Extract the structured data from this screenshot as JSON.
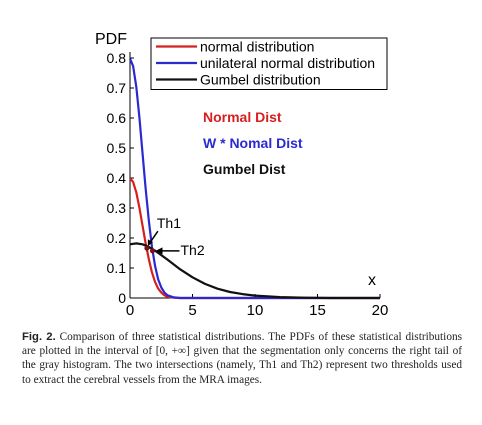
{
  "chart_data": {
    "type": "line",
    "ylabel": "PDF",
    "xlabel": "x",
    "xlim": [
      0,
      20
    ],
    "ylim": [
      0,
      0.8
    ],
    "xticks": [
      0,
      5,
      10,
      15,
      20
    ],
    "yticks": [
      "0",
      "0.1",
      "0.2",
      "0.3",
      "0.4",
      "0.5",
      "0.6",
      "0.7",
      "0.8"
    ],
    "grid": false,
    "legend_position": "top-right",
    "series": [
      {
        "name": "normal distribution",
        "color": "#d62020",
        "x": [
          0,
          0.25,
          0.5,
          0.75,
          1.0,
          1.25,
          1.5,
          1.75,
          2.0,
          2.25,
          2.5,
          2.75,
          3.0,
          3.5,
          4.0,
          5.0,
          20
        ],
        "y": [
          0.399,
          0.387,
          0.352,
          0.301,
          0.242,
          0.183,
          0.13,
          0.086,
          0.054,
          0.032,
          0.018,
          0.009,
          0.004,
          0.001,
          0.0,
          0.0,
          0.0
        ]
      },
      {
        "name": "unilateral normal distribution",
        "color": "#2a2ad0",
        "x": [
          0,
          0.25,
          0.5,
          0.75,
          1.0,
          1.25,
          1.5,
          1.75,
          2.0,
          2.25,
          2.5,
          2.75,
          3.0,
          3.5,
          4.0,
          5.0,
          20
        ],
        "y": [
          0.798,
          0.773,
          0.704,
          0.602,
          0.484,
          0.366,
          0.259,
          0.172,
          0.108,
          0.063,
          0.035,
          0.018,
          0.009,
          0.002,
          0.0,
          0.0,
          0.0
        ]
      },
      {
        "name": "Gumbel distribution",
        "color": "#111111",
        "x": [
          0,
          0.5,
          1.0,
          1.5,
          2.0,
          3.0,
          4.0,
          5.0,
          6.0,
          7.0,
          8.0,
          9.0,
          10.0,
          12.0,
          14.0,
          16.0,
          18.0,
          20.0
        ],
        "y": [
          0.179,
          0.182,
          0.179,
          0.17,
          0.158,
          0.128,
          0.096,
          0.069,
          0.047,
          0.031,
          0.02,
          0.013,
          0.008,
          0.003,
          0.001,
          0.0,
          0.0,
          0.0
        ]
      }
    ],
    "annotations": [
      {
        "text": "Th1",
        "x": 1.35,
        "y": 0.166
      },
      {
        "text": "Th2",
        "x": 1.8,
        "y": 0.157
      }
    ],
    "overlay_labels": [
      {
        "text": "Normal Dist",
        "color": "#d62020"
      },
      {
        "text": "W * Nomal Dist",
        "color": "#2a2ad0"
      },
      {
        "text": "Gumbel Dist",
        "color": "#111111"
      }
    ]
  },
  "caption": {
    "label": "Fig. 2.",
    "text": "Comparison of three statistical distributions. The PDFs of these statistical distributions are plotted in the interval of [0, +∞] given that the segmentation only concerns the right tail of the gray histogram. The two intersections (namely, Th1 and Th2) represent two thresholds used to extract the cerebral vessels from the MRA images."
  }
}
